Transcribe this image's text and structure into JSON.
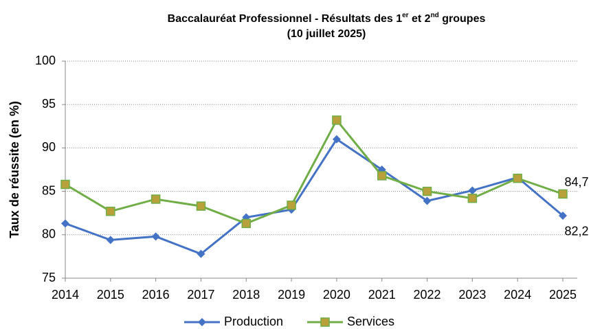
{
  "chart_data": {
    "type": "line",
    "title": [
      "Baccalauréat Professionnel - Résultats des 1",
      "er",
      " et 2",
      "nd",
      " groupes"
    ],
    "subtitle": "(10 juillet 2025)",
    "y_label": "Taux de réussite (en %)",
    "categories": [
      "2014",
      "2015",
      "2016",
      "2017",
      "2018",
      "2019",
      "2020",
      "2021",
      "2022",
      "2023",
      "2024",
      "2025"
    ],
    "series": [
      {
        "name": "Production",
        "color": "#4472c4",
        "marker": "diamond",
        "marker_color": "#4472c4",
        "values": [
          81.3,
          79.4,
          79.8,
          77.8,
          82.0,
          82.9,
          91.0,
          87.5,
          83.9,
          85.1,
          86.6,
          82.2
        ],
        "value_labels": [
          null,
          null,
          null,
          null,
          null,
          null,
          null,
          null,
          null,
          null,
          null,
          "82,2"
        ]
      },
      {
        "name": "Services",
        "color": "#70ad47",
        "marker": "square",
        "marker_color": "#b8a13a",
        "values": [
          85.8,
          82.7,
          84.1,
          83.3,
          81.3,
          83.4,
          93.2,
          86.8,
          85.0,
          84.2,
          86.5,
          84.7
        ],
        "value_labels": [
          null,
          null,
          null,
          null,
          null,
          null,
          null,
          null,
          null,
          null,
          null,
          "84,7"
        ]
      }
    ],
    "ylim": [
      75,
      100
    ],
    "yticks": [
      75,
      80,
      85,
      90,
      95,
      100
    ],
    "grid": true,
    "legend": "bottom"
  }
}
